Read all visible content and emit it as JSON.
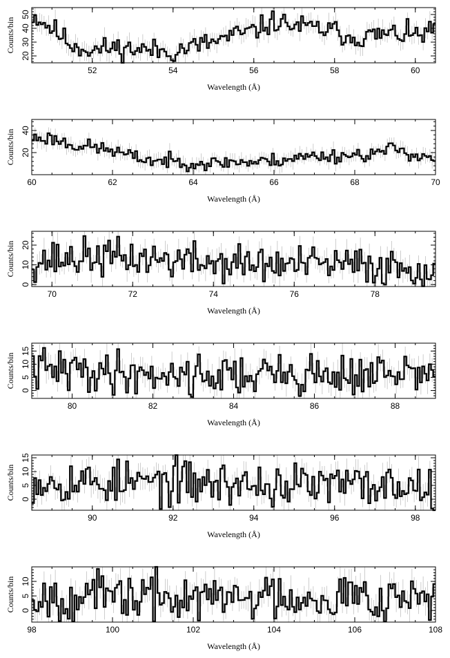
{
  "chart_data": [
    {
      "type": "line",
      "xlabel": "Wavelength (Å)",
      "ylabel": "Counts/bin",
      "xlim": [
        50.5,
        60.5
      ],
      "ylim": [
        15,
        55
      ],
      "xticks": [
        52,
        54,
        56,
        58,
        60
      ],
      "yticks": [
        20,
        30,
        40,
        50
      ],
      "anchors": [
        [
          50.5,
          50
        ],
        [
          51.0,
          40
        ],
        [
          51.5,
          28
        ],
        [
          52.0,
          24
        ],
        [
          52.5,
          26
        ],
        [
          53.0,
          25
        ],
        [
          53.5,
          24
        ],
        [
          54.0,
          23
        ],
        [
          54.5,
          27
        ],
        [
          55.0,
          30
        ],
        [
          55.5,
          35
        ],
        [
          56.0,
          38
        ],
        [
          56.5,
          45
        ],
        [
          57.0,
          42
        ],
        [
          57.5,
          40
        ],
        [
          58.0,
          38
        ],
        [
          58.5,
          33
        ],
        [
          59.0,
          35
        ],
        [
          59.5,
          36
        ],
        [
          60.0,
          35
        ],
        [
          60.5,
          38
        ]
      ],
      "noise": 5,
      "errbar": 6,
      "seed": 11
    },
    {
      "type": "line",
      "xlabel": "Wavelength (Å)",
      "ylabel": "Counts/bin",
      "xlim": [
        60,
        70
      ],
      "ylim": [
        0,
        50
      ],
      "xticks": [
        60,
        62,
        64,
        66,
        68,
        70
      ],
      "yticks": [
        20,
        40
      ],
      "anchors": [
        [
          60.0,
          33
        ],
        [
          60.5,
          33
        ],
        [
          61.0,
          27
        ],
        [
          61.5,
          25
        ],
        [
          62.0,
          22
        ],
        [
          62.5,
          16
        ],
        [
          63.0,
          13
        ],
        [
          63.5,
          12
        ],
        [
          64.0,
          11
        ],
        [
          64.5,
          10
        ],
        [
          65.0,
          12
        ],
        [
          65.5,
          11
        ],
        [
          66.0,
          13
        ],
        [
          66.5,
          15
        ],
        [
          67.0,
          17
        ],
        [
          67.5,
          17
        ],
        [
          68.0,
          18
        ],
        [
          68.5,
          19
        ],
        [
          69.0,
          24
        ],
        [
          69.5,
          18
        ],
        [
          70.0,
          15
        ]
      ],
      "noise": 4,
      "errbar": 6,
      "seed": 23
    },
    {
      "type": "line",
      "xlabel": "Wavelength (Å)",
      "ylabel": "Counts/bin",
      "xlim": [
        69.5,
        79.5
      ],
      "ylim": [
        -1,
        27
      ],
      "xticks": [
        70,
        72,
        74,
        76,
        78
      ],
      "yticks": [
        0,
        10,
        20
      ],
      "anchors": [
        [
          69.5,
          12
        ],
        [
          71.0,
          14
        ],
        [
          72.5,
          13
        ],
        [
          74.0,
          11
        ],
        [
          75.5,
          10
        ],
        [
          77.0,
          10
        ],
        [
          78.5,
          9
        ],
        [
          79.5,
          8
        ]
      ],
      "noise": 6,
      "errbar": 5,
      "seed": 37
    },
    {
      "type": "line",
      "xlabel": "Wavelength (Å)",
      "ylabel": "Counts/bin",
      "xlim": [
        79,
        89
      ],
      "ylim": [
        -3,
        18
      ],
      "xticks": [
        80,
        82,
        84,
        86,
        88
      ],
      "yticks": [
        0,
        5,
        10,
        15
      ],
      "anchors": [
        [
          79.0,
          8
        ],
        [
          81.0,
          7
        ],
        [
          83.0,
          6
        ],
        [
          85.0,
          6
        ],
        [
          87.0,
          6
        ],
        [
          89.0,
          6
        ]
      ],
      "noise": 5,
      "errbar": 4,
      "seed": 41
    },
    {
      "type": "line",
      "xlabel": "Wavelength (Å)",
      "ylabel": "Counts/bin",
      "xlim": [
        88.5,
        98.5
      ],
      "ylim": [
        -4,
        16
      ],
      "xticks": [
        90,
        92,
        94,
        96,
        98
      ],
      "yticks": [
        0,
        5,
        10,
        15
      ],
      "anchors": [
        [
          88.5,
          7
        ],
        [
          90.5,
          6
        ],
        [
          92.5,
          6
        ],
        [
          94.5,
          5
        ],
        [
          96.5,
          5
        ],
        [
          98.5,
          5
        ]
      ],
      "noise": 5,
      "errbar": 4,
      "seed": 53
    },
    {
      "type": "line",
      "xlabel": "Wavelength (Å)",
      "ylabel": "Counts/bin",
      "xlim": [
        98,
        108
      ],
      "ylim": [
        -4,
        15
      ],
      "xticks": [
        98,
        100,
        102,
        104,
        106,
        108
      ],
      "yticks": [
        0,
        5,
        10
      ],
      "anchors": [
        [
          98.0,
          5
        ],
        [
          100.0,
          5
        ],
        [
          102.0,
          4
        ],
        [
          104.0,
          5
        ],
        [
          106.0,
          5
        ],
        [
          108.0,
          5
        ]
      ],
      "noise": 5,
      "errbar": 4,
      "seed": 67
    }
  ]
}
